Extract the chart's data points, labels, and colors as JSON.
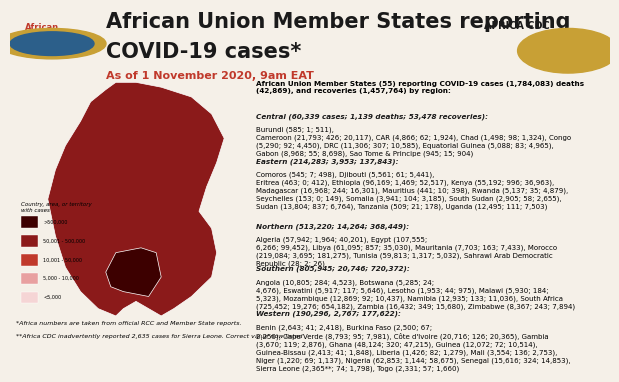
{
  "title_line1": "African Union Member States reporting",
  "title_line2": "COVID-19 cases*",
  "date_line": "As of 1 November 2020, 9am EAT",
  "title_color": "#1a1a1a",
  "date_color": "#c0392b",
  "bg_color": "#f5f0e8",
  "header_summary": "African Union Member States (55) reporting COVID-19 cases (1,784,083) deaths\n(42,869), and recoveries (1,457,764) by region:",
  "central_bold": "Central (60,339 cases; 1,139 deaths; 53,478 recoveries):",
  "central_text": "  Burundi (585; 1; 511),\nCameroon (21,793; 426; 20,117), CAR (4,866; 62; 1,924), Chad (1,498; 98; 1,324), Congo\n(5,290; 92; 4,450), DRC (11,306; 307; 10,585), Equatorial Guinea (5,088; 83; 4,965),\nGabon (8,968; 55; 8,698), Sao Tome & Principe (945; 15; 904)",
  "eastern_bold": "Eastern (214,283; 3,953; 137,843):",
  "eastern_text": " Comoros (545; 7; 498), Djibouti (5,561; 61; 5,441),\nEritrea (463; 0; 412), Ethiopia (96,169; 1,469; 52,517), Kenya (55,192; 996; 36,963),\nMadagascar (16,968; 244; 16,301), Mauritius (441; 10; 398), Rwanda (5,137; 35; 4,879),\nSeychelles (153; 0; 149), Somalia (3,941; 104; 3,185), South Sudan (2,905; 58; 2,655),\nSudan (13,804; 837; 6,764), Tanzania (509; 21; 178), Uganda (12,495; 111; 7,503)",
  "northern_bold": "Northern (513,220; 14,264; 368,449):",
  "northern_text": " Algeria (57,942; 1,964; 40,201), Egypt (107,555;\n6,266; 99,452), Libya (61,095; 857; 35,030), Mauritania (7,703; 163; 7,433), Morocco\n(219,084; 3,695; 181,275), Tunisia (59,813; 1,317; 5,032), Sahrawi Arab Democratic\nRepublic (28; 2; 26)",
  "southern_bold": "Southern (805,945; 20,746; 720,372):",
  "southern_text": " Angola (10,805; 284; 4,523), Botswana (5,285; 24;\n4,676), Eswatini (5,917; 117; 5,646), Lesotho (1,953; 44; 975), Malawi (5,930; 184;\n5,323), Mozambique (12,869; 92; 10,437), Namibia (12,935; 133; 11,036), South Africa\n(725,452; 19,276; 654,182), Zambia (16,432; 349; 15,680), Zimbabwe (8,367; 243; 7,894)",
  "western_bold": "Western (190,296, 2,767; 177,622):",
  "western_text": " Benin (2,643; 41; 2,418), Burkina Faso (2,500; 67;\n2,250), Cape Verde (8,793; 95; 7,981), Côte d'Ivoire (20,716; 126; 20,365), Gambia\n(3,670; 119; 2,876), Ghana (48,124; 320; 47,215), Guinea (12,072; 72; 10,514),\nGuinea-Bissau (2,413; 41; 1,848), Liberia (1,426; 82; 1,279), Mali (3,554; 136; 2,753),\nNiger (1,220; 69; 1,137), Nigeria (62,853; 1,144; 58,675), Senegal (15,616; 324; 14,853),\nSierra Leone (2,365**; 74; 1,798), Togo (2,331; 57; 1,660)",
  "footnote1": "*Africa numbers are taken from official RCC and Member State reports.",
  "footnote2": "**Africa CDC inadvertently reported 2,635 cases for Sierra Leone. Correct value now listed",
  "legend_title": "Country, area, or territory\nwith cases",
  "legend_colors": [
    "#3d0000",
    "#8b1a1a",
    "#c0392b",
    "#e8a0a0",
    "#f5d5d5"
  ],
  "legend_labels": [
    ">500,000",
    "50,001 - 500,000",
    "10,001 - 50,000",
    "5,000 - 10,000",
    "<5,000"
  ],
  "map_bg": "#d4c5a9",
  "africa_union_text_color": "#c0392b",
  "text_size_body": 5.5,
  "text_size_header": 8.5,
  "text_size_title": 15,
  "text_size_date": 8,
  "text_size_footnote": 4.5
}
